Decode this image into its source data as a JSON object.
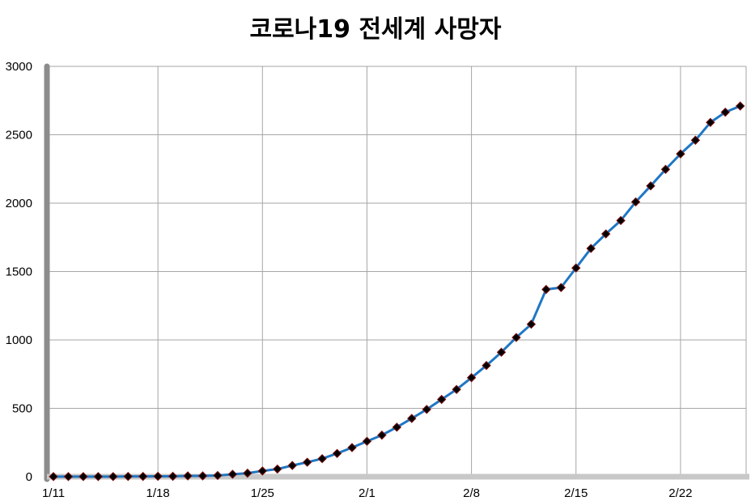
{
  "chart_data": {
    "type": "line",
    "title": "코로나19 전세계 사망자",
    "xlabel": "",
    "ylabel": "",
    "ylim": [
      0,
      3000
    ],
    "yticks": [
      0,
      500,
      1000,
      1500,
      2000,
      2500,
      3000
    ],
    "xtick_labels": [
      "1/11",
      "1/18",
      "1/25",
      "2/1",
      "2/8",
      "2/15",
      "2/22"
    ],
    "grid": true,
    "legend": "none",
    "colors": {
      "line": "#1f77c4",
      "marker": "#000000",
      "marker_stroke": "#7a1010",
      "grid": "#a6a6a6",
      "axis": "#8c8c8c",
      "baseline": "#c8c8c8"
    },
    "x": [
      "1/11",
      "1/12",
      "1/13",
      "1/14",
      "1/15",
      "1/16",
      "1/17",
      "1/18",
      "1/19",
      "1/20",
      "1/21",
      "1/22",
      "1/23",
      "1/24",
      "1/25",
      "1/26",
      "1/27",
      "1/28",
      "1/29",
      "1/30",
      "1/31",
      "2/1",
      "2/2",
      "2/3",
      "2/4",
      "2/5",
      "2/6",
      "2/7",
      "2/8",
      "2/9",
      "2/10",
      "2/11",
      "2/12",
      "2/13",
      "2/14",
      "2/15",
      "2/16",
      "2/17",
      "2/18",
      "2/19",
      "2/20",
      "2/21",
      "2/22",
      "2/23",
      "2/24",
      "2/25",
      "2/26"
    ],
    "series": [
      {
        "name": "",
        "values": [
          1,
          1,
          1,
          1,
          1,
          2,
          2,
          3,
          3,
          6,
          6,
          9,
          18,
          26,
          42,
          56,
          82,
          106,
          132,
          170,
          213,
          259,
          304,
          362,
          426,
          492,
          565,
          638,
          724,
          813,
          910,
          1018,
          1115,
          1369,
          1383,
          1526,
          1669,
          1775,
          1873,
          2009,
          2126,
          2247,
          2360,
          2460,
          2590,
          2665,
          2710
        ]
      }
    ]
  }
}
